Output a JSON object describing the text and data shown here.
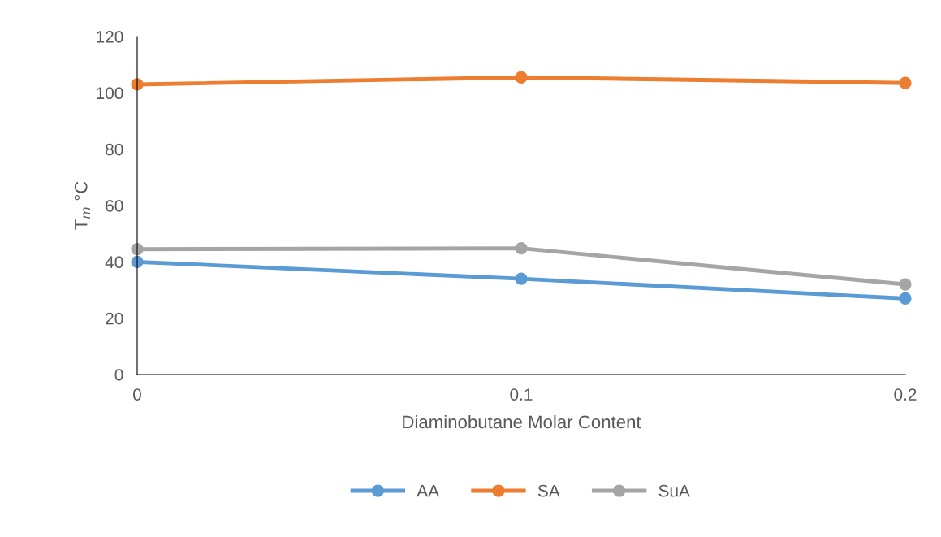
{
  "chart_data": {
    "type": "line",
    "xlabel": "Diaminobutane Molar Content",
    "ylabel": "T$_{m}$ °C",
    "x": [
      0,
      0.1,
      0.2
    ],
    "series": [
      {
        "name": "AA",
        "color": "#5b9bd5",
        "values": [
          40,
          34,
          27
        ]
      },
      {
        "name": "SA",
        "color": "#ed7d31",
        "values": [
          103,
          105.5,
          103.5
        ]
      },
      {
        "name": "SuA",
        "color": "#a5a5a5",
        "values": [
          44.5,
          44.8,
          32
        ]
      }
    ],
    "xlim": [
      0,
      0.2
    ],
    "xticks": [
      0,
      0.1,
      0.2
    ],
    "ylim": [
      0,
      120
    ],
    "yticks": [
      0,
      20,
      40,
      60,
      80,
      100,
      120
    ],
    "grid": false,
    "legend": "bottom",
    "marker": "circle",
    "line_style": "solid"
  }
}
